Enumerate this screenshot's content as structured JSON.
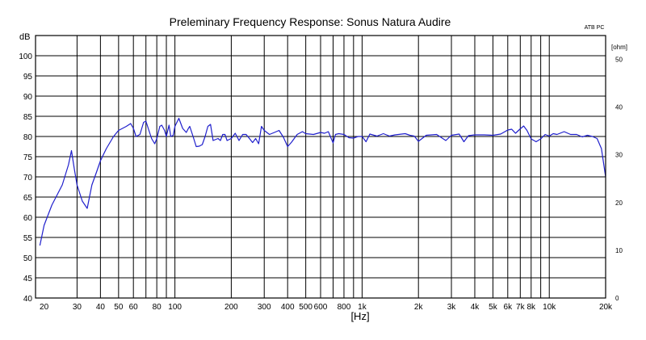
{
  "chart_data": {
    "type": "line",
    "title": "Preleminary Frequency Response: Sonus Natura Audire",
    "corner_label": "ATB PC",
    "ylabel": "dB",
    "xlabel": "[Hz]",
    "right_axis_label": "[ohm]",
    "x_scale": "log",
    "xlim": [
      18,
      20000
    ],
    "ylim": [
      40,
      105
    ],
    "right_ylim": [
      0,
      55
    ],
    "grid": true,
    "x_ticks": [
      20,
      30,
      40,
      50,
      60,
      80,
      100,
      200,
      300,
      400,
      500,
      600,
      800,
      1000,
      2000,
      3000,
      4000,
      5000,
      6000,
      7000,
      8000,
      10000,
      20000
    ],
    "x_tick_labels": [
      "20",
      "30",
      "40",
      "50",
      "60",
      "80",
      "100",
      "200",
      "300",
      "400",
      "500",
      "600",
      "800",
      "1k",
      "2k",
      "3k",
      "4k",
      "5k",
      "6k",
      "7k",
      "8k",
      "10k",
      "20k"
    ],
    "x_gridlines": [
      30,
      40,
      50,
      60,
      70,
      80,
      90,
      100,
      200,
      300,
      400,
      500,
      600,
      700,
      800,
      900,
      1000,
      2000,
      3000,
      4000,
      5000,
      6000,
      7000,
      8000,
      9000,
      10000
    ],
    "y_ticks": [
      40,
      45,
      50,
      55,
      60,
      65,
      70,
      75,
      80,
      85,
      90,
      95,
      100
    ],
    "right_ticks": [
      0,
      10,
      20,
      30,
      40,
      50
    ],
    "line_color": "#1f1fcc",
    "series": [
      {
        "x": [
          19,
          20,
          22,
          25,
          27,
          28,
          29,
          30,
          32,
          34,
          36,
          38,
          40,
          43,
          47,
          50,
          55,
          58,
          60,
          62,
          65,
          68,
          70,
          72,
          75,
          78,
          80,
          83,
          85,
          88,
          90,
          93,
          95,
          98,
          100,
          105,
          110,
          115,
          118,
          120,
          125,
          130,
          135,
          140,
          145,
          150,
          155,
          160,
          170,
          175,
          180,
          185,
          190,
          200,
          210,
          220,
          230,
          240,
          250,
          260,
          270,
          280,
          290,
          300,
          320,
          340,
          360,
          380,
          400,
          420,
          450,
          480,
          500,
          550,
          600,
          630,
          660,
          700,
          720,
          750,
          800,
          850,
          900,
          950,
          1000,
          1050,
          1100,
          1200,
          1300,
          1400,
          1500,
          1700,
          1800,
          1900,
          2000,
          2200,
          2500,
          2800,
          3000,
          3300,
          3500,
          3700,
          4000,
          4500,
          5000,
          5500,
          6000,
          6300,
          6600,
          7000,
          7300,
          7600,
          8000,
          8500,
          9000,
          9500,
          10000,
          10500,
          11000,
          12000,
          13000,
          14000,
          15000,
          16000,
          17000,
          18000,
          19000,
          20000
        ],
        "y": [
          53,
          58,
          63,
          68,
          73,
          76.5,
          72,
          68,
          64,
          62.2,
          68,
          71,
          74,
          77,
          80,
          81.5,
          82.5,
          83.2,
          82,
          80,
          80.5,
          83.5,
          83.8,
          82,
          79.5,
          78.2,
          79.5,
          82.5,
          82.8,
          81.5,
          80,
          82.8,
          80,
          80.3,
          82.5,
          84.5,
          82,
          81,
          82,
          82.5,
          80,
          77.5,
          77.6,
          78,
          80,
          82.5,
          83,
          79,
          79.5,
          79,
          80.5,
          80.5,
          79,
          79.5,
          80.8,
          79,
          80.5,
          80.5,
          79.5,
          78.5,
          79.5,
          78.2,
          82.5,
          81.5,
          80.5,
          81,
          81.5,
          79.8,
          77.5,
          78.6,
          80.5,
          81.2,
          80.7,
          80.5,
          81,
          80.8,
          81.2,
          78.4,
          80.5,
          80.7,
          80.5,
          79.7,
          79.6,
          80,
          80,
          78.7,
          80.6,
          80.1,
          80.7,
          80.1,
          80.4,
          80.7,
          80.3,
          80.1,
          78.8,
          80.3,
          80.5,
          79,
          80.3,
          80.6,
          78.7,
          80.2,
          80.4,
          80.4,
          80.3,
          80.6,
          81.6,
          81.8,
          80.8,
          81.9,
          82.6,
          81.5,
          79.4,
          78.7,
          79.4,
          80.5,
          80.1,
          80.7,
          80.5,
          81.2,
          80.5,
          80.5,
          79.9,
          80.3,
          80.0,
          79.5,
          77,
          70
        ]
      }
    ]
  }
}
